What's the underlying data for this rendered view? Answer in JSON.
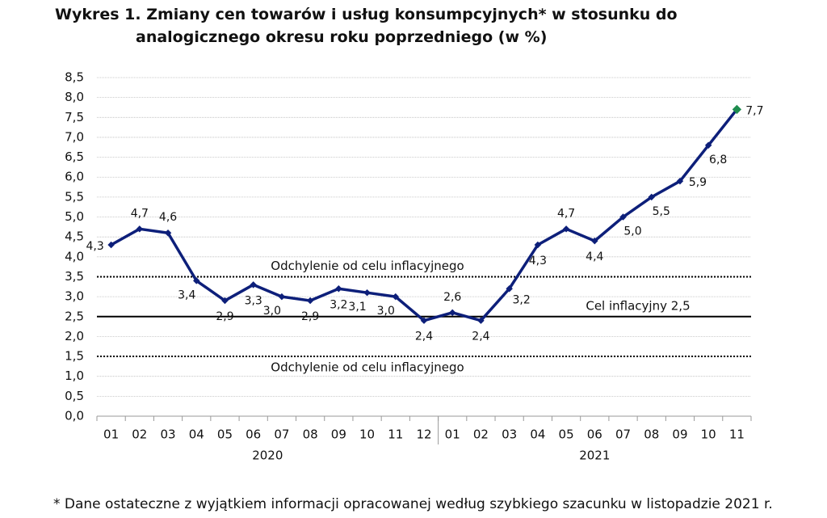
{
  "chart_data": {
    "type": "line",
    "title": "Wykres 1. Zmiany cen towarów i usług konsumpcyjnych* w stosunku do analogicznego okresu roku poprzedniego (w %)",
    "categories": [
      "01",
      "02",
      "03",
      "04",
      "05",
      "06",
      "07",
      "08",
      "09",
      "10",
      "11",
      "12",
      "01",
      "02",
      "03",
      "04",
      "05",
      "06",
      "07",
      "08",
      "09",
      "10",
      "11"
    ],
    "groups": [
      {
        "label": "2020",
        "count": 12
      },
      {
        "label": "2021",
        "count": 11
      }
    ],
    "series": [
      {
        "color": "#0d1f7a",
        "last_point_color": "#1e8c4e",
        "values": [
          4.3,
          4.7,
          4.6,
          3.4,
          2.9,
          3.3,
          3.0,
          2.9,
          3.2,
          3.1,
          3.0,
          2.4,
          2.6,
          2.4,
          3.2,
          4.3,
          4.7,
          4.4,
          5.0,
          5.5,
          5.9,
          6.8,
          7.7
        ],
        "value_labels": [
          "4,3",
          "4,7",
          "4,6",
          "3,4",
          "2,9",
          "3,3",
          "3,0",
          "2,9",
          "3,2",
          "3,1",
          "3,0",
          "2,4",
          "2,6",
          "2,4",
          "3,2",
          "4,3",
          "4,7",
          "4,4",
          "5,0",
          "5,5",
          "5,9",
          "6,8",
          "7,7"
        ]
      }
    ],
    "reference_lines": [
      {
        "value": 3.5,
        "label": "Odchylenie od celu inflacyjnego",
        "style": "dotted"
      },
      {
        "value": 2.5,
        "label": "Cel inflacyjny 2,5",
        "style": "solid"
      },
      {
        "value": 1.5,
        "label": "Odchylenie od celu inflacyjnego",
        "style": "dotted"
      }
    ],
    "ylim": [
      0,
      8.5
    ],
    "yticks": [
      {
        "value": 0,
        "label": "0,0"
      },
      {
        "value": 0.5,
        "label": "0,5"
      },
      {
        "value": 1,
        "label": "1,0"
      },
      {
        "value": 1.5,
        "label": "1,5"
      },
      {
        "value": 2,
        "label": "2,0"
      },
      {
        "value": 2.5,
        "label": "2,5"
      },
      {
        "value": 3,
        "label": "3,0"
      },
      {
        "value": 3.5,
        "label": "3,5"
      },
      {
        "value": 4,
        "label": "4,0"
      },
      {
        "value": 4.5,
        "label": "4,5"
      },
      {
        "value": 5,
        "label": "5,0"
      },
      {
        "value": 5.5,
        "label": "5,5"
      },
      {
        "value": 6,
        "label": "6,0"
      },
      {
        "value": 6.5,
        "label": "6,5"
      },
      {
        "value": 7,
        "label": "7,0"
      },
      {
        "value": 7.5,
        "label": "7,5"
      },
      {
        "value": 8,
        "label": "8,0"
      },
      {
        "value": 8.5,
        "label": "8,5"
      }
    ],
    "grid": true,
    "footnote": "* Dane ostateczne z wyjątkiem informacji opracowanej według szybkiego szacunku w listopadzie 2021 r."
  }
}
